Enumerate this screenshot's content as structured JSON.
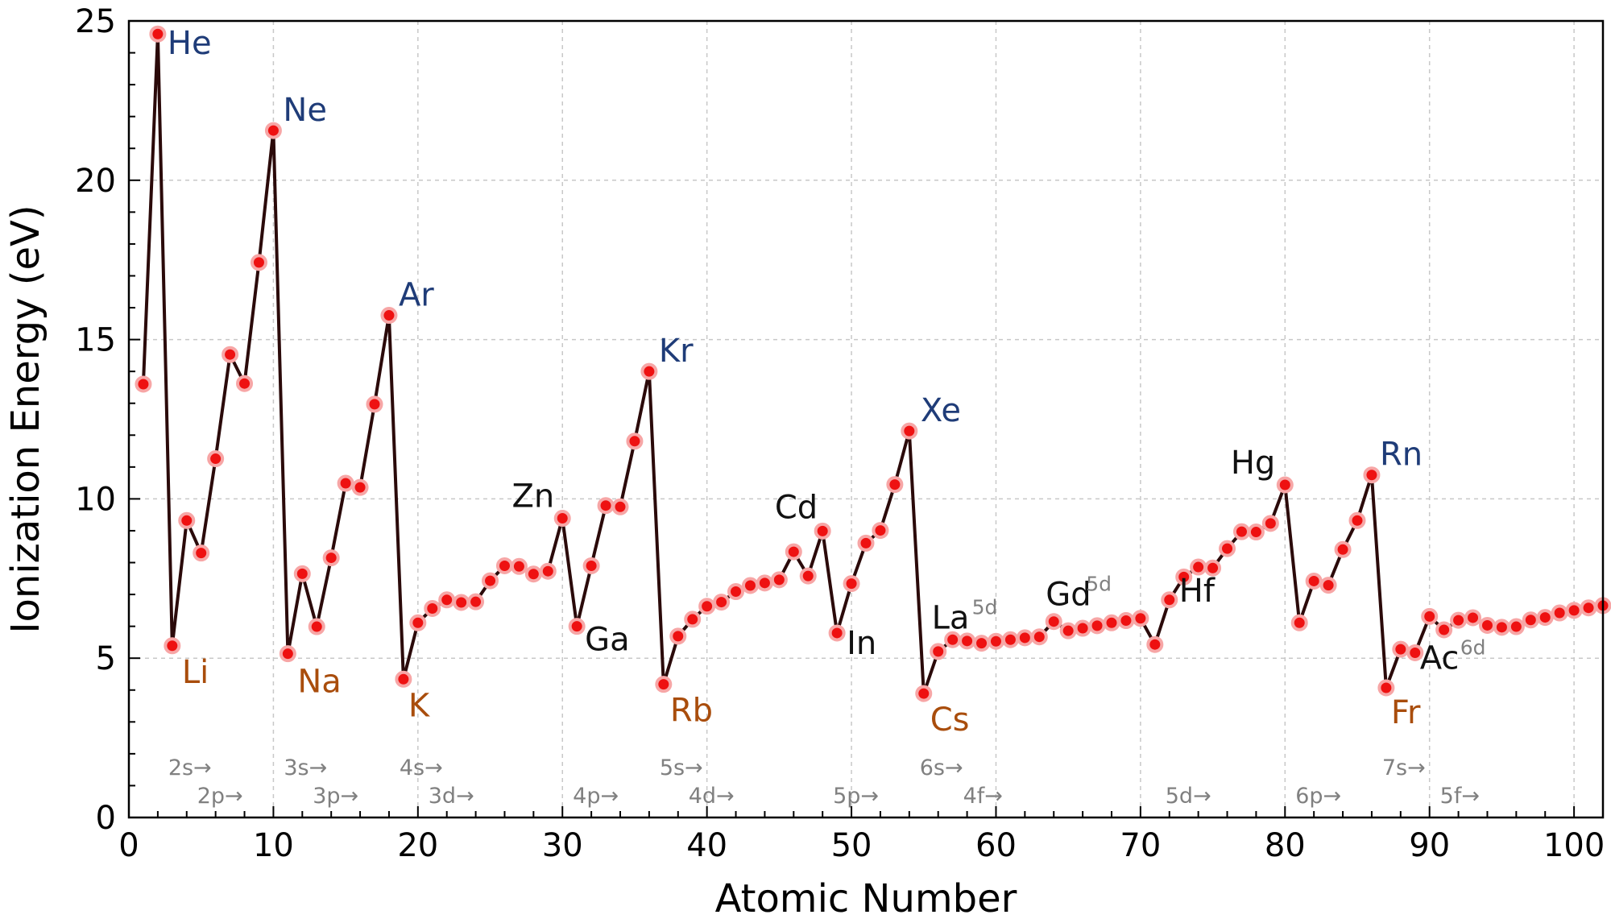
{
  "chart_data": {
    "type": "line",
    "xlabel": "Atomic Number",
    "ylabel": "Ionization Energy (eV)",
    "xlim": [
      0,
      102
    ],
    "ylim": [
      0,
      25
    ],
    "xticks": [
      0,
      10,
      20,
      30,
      40,
      50,
      60,
      70,
      80,
      90,
      100
    ],
    "yticks": [
      0,
      5,
      10,
      15,
      20,
      25
    ],
    "xtick_labels": [
      "0",
      "10",
      "20",
      "30",
      "40",
      "50",
      "60",
      "70",
      "80",
      "90",
      "100"
    ],
    "ytick_labels": [
      "0",
      "5",
      "10",
      "15",
      "20",
      "25"
    ],
    "grid": true,
    "colors": {
      "line": "#2b0a0a",
      "marker": "#ee1111",
      "marker_edge": "#f7a6a6",
      "noble_gas": "#1f3c78",
      "alkali": "#a94d0c",
      "other": "#111111",
      "orbital": "#808080",
      "grid": "#c8c8c8"
    },
    "series": [
      {
        "x": [
          1,
          2,
          3,
          4,
          5,
          6,
          7,
          8,
          9,
          10,
          11,
          12,
          13,
          14,
          15,
          16,
          17,
          18,
          19,
          20,
          21,
          22,
          23,
          24,
          25,
          26,
          27,
          28,
          29,
          30,
          31,
          32,
          33,
          34,
          35,
          36,
          37,
          38,
          39,
          40,
          41,
          42,
          43,
          44,
          45,
          46,
          47,
          48,
          49,
          50,
          51,
          52,
          53,
          54,
          55,
          56,
          57,
          58,
          59,
          60,
          61,
          62,
          63,
          64,
          65,
          66,
          67,
          68,
          69,
          70,
          71,
          72,
          73,
          74,
          75,
          76,
          77,
          78,
          79,
          80,
          81,
          82,
          83,
          84,
          85,
          86,
          87,
          88,
          89,
          90,
          91,
          92,
          93,
          94,
          95,
          96,
          97,
          98,
          99,
          100,
          101,
          102
        ],
        "values": [
          13.6,
          24.59,
          5.39,
          9.32,
          8.3,
          11.26,
          14.53,
          13.62,
          17.42,
          21.56,
          5.14,
          7.65,
          5.99,
          8.15,
          10.49,
          10.36,
          12.97,
          15.76,
          4.34,
          6.11,
          6.56,
          6.83,
          6.75,
          6.77,
          7.43,
          7.9,
          7.88,
          7.64,
          7.73,
          9.39,
          6.0,
          7.9,
          9.79,
          9.75,
          11.81,
          14.0,
          4.18,
          5.69,
          6.22,
          6.63,
          6.76,
          7.09,
          7.28,
          7.36,
          7.46,
          8.34,
          7.58,
          8.99,
          5.79,
          7.34,
          8.61,
          9.01,
          10.45,
          12.13,
          3.89,
          5.21,
          5.58,
          5.54,
          5.47,
          5.53,
          5.58,
          5.64,
          5.67,
          6.15,
          5.86,
          5.94,
          6.02,
          6.11,
          6.18,
          6.25,
          5.43,
          6.83,
          7.55,
          7.86,
          7.83,
          8.44,
          8.97,
          8.96,
          9.23,
          10.44,
          6.11,
          7.42,
          7.29,
          8.41,
          9.32,
          10.75,
          4.07,
          5.28,
          5.17,
          6.31,
          5.89,
          6.19,
          6.27,
          6.03,
          5.97,
          5.99,
          6.2,
          6.28,
          6.42,
          6.5,
          6.58,
          6.65
        ]
      }
    ],
    "element_labels": [
      {
        "text": "He",
        "z": 2,
        "group": "noble_gas"
      },
      {
        "text": "Ne",
        "z": 10,
        "group": "noble_gas"
      },
      {
        "text": "Ar",
        "z": 18,
        "group": "noble_gas"
      },
      {
        "text": "Kr",
        "z": 36,
        "group": "noble_gas"
      },
      {
        "text": "Xe",
        "z": 54,
        "group": "noble_gas"
      },
      {
        "text": "Rn",
        "z": 86,
        "group": "noble_gas"
      },
      {
        "text": "Li",
        "z": 3,
        "group": "alkali"
      },
      {
        "text": "Na",
        "z": 11,
        "group": "alkali"
      },
      {
        "text": "K",
        "z": 19,
        "group": "alkali"
      },
      {
        "text": "Rb",
        "z": 37,
        "group": "alkali"
      },
      {
        "text": "Cs",
        "z": 55,
        "group": "alkali"
      },
      {
        "text": "Fr",
        "z": 87,
        "group": "alkali"
      },
      {
        "text": "Zn",
        "z": 30,
        "group": "other"
      },
      {
        "text": "Ga",
        "z": 31,
        "group": "other"
      },
      {
        "text": "Cd",
        "z": 48,
        "group": "other"
      },
      {
        "text": "In",
        "z": 49,
        "group": "other"
      },
      {
        "text": "Hg",
        "z": 80,
        "group": "other"
      },
      {
        "text": "Hf",
        "z": 72,
        "group": "other"
      },
      {
        "text": "La",
        "z": 57,
        "group": "other",
        "sup": "5d"
      },
      {
        "text": "Gd",
        "z": 64,
        "group": "other",
        "sup": "5d"
      },
      {
        "text": "Ac",
        "z": 89,
        "group": "other",
        "sup": "6d"
      }
    ],
    "orbital_labels": [
      {
        "text": "2s→",
        "row": 1
      },
      {
        "text": "3s→",
        "row": 1
      },
      {
        "text": "4s→",
        "row": 1
      },
      {
        "text": "5s→",
        "row": 1
      },
      {
        "text": "6s→",
        "row": 1
      },
      {
        "text": "7s→",
        "row": 1
      },
      {
        "text": "2p→",
        "row": 2
      },
      {
        "text": "3p→",
        "row": 2
      },
      {
        "text": "3d→",
        "row": 2
      },
      {
        "text": "4p→",
        "row": 2
      },
      {
        "text": "4d→",
        "row": 2
      },
      {
        "text": "5p→",
        "row": 2
      },
      {
        "text": "4f→",
        "row": 2
      },
      {
        "text": "5d→",
        "row": 2
      },
      {
        "text": "6p→",
        "row": 2
      },
      {
        "text": "5f→",
        "row": 2
      }
    ]
  }
}
